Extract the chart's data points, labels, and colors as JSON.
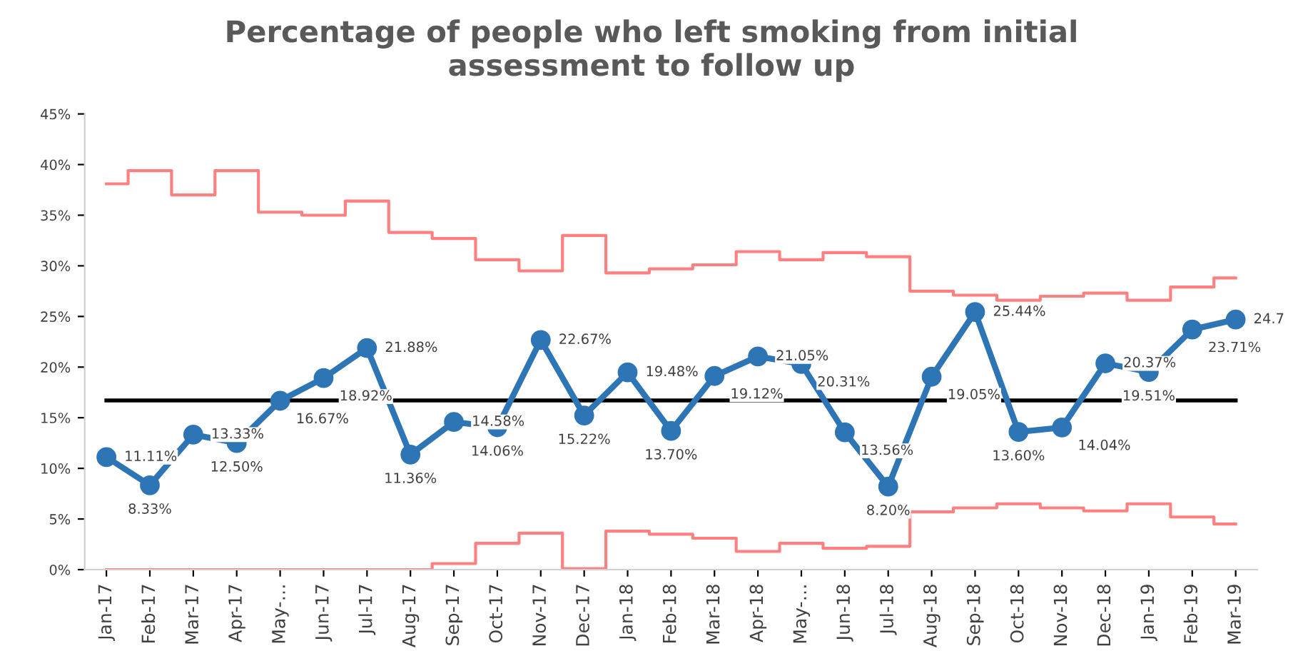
{
  "chart_data": {
    "type": "line",
    "title": "Percentage of people who left smoking from initial\nassessment to follow up",
    "categories": [
      "Jan-17",
      "Feb-17",
      "Mar-17",
      "Apr-17",
      "May-…",
      "Jun-17",
      "Jul-17",
      "Aug-17",
      "Sep-17",
      "Oct-17",
      "Nov-17",
      "Dec-17",
      "Jan-18",
      "Feb-18",
      "Mar-18",
      "Apr-18",
      "May-…",
      "Jun-18",
      "Jul-18",
      "Aug-18",
      "Sep-18",
      "Oct-18",
      "Nov-18",
      "Dec-18",
      "Jan-19",
      "Feb-19",
      "Mar-19"
    ],
    "series": [
      {
        "type": "step",
        "color": "#ff8080",
        "marker": "none",
        "values": [
          38.1,
          39.4,
          37.0,
          39.4,
          35.3,
          35.0,
          36.4,
          33.3,
          32.7,
          30.6,
          29.5,
          33.0,
          29.3,
          29.7,
          30.1,
          31.4,
          30.6,
          31.3,
          30.9,
          27.5,
          27.1,
          26.6,
          27.0,
          27.3,
          26.6,
          27.9,
          28.8
        ]
      },
      {
        "type": "step",
        "color": "#ff8080",
        "marker": "none",
        "values": [
          0,
          0,
          0,
          0,
          0,
          0,
          0,
          0,
          0.6,
          2.6,
          3.6,
          0.1,
          3.8,
          3.5,
          3.1,
          1.8,
          2.6,
          2.1,
          2.3,
          5.7,
          6.1,
          6.5,
          6.1,
          5.8,
          6.5,
          5.2,
          4.5
        ]
      },
      {
        "color": "#2e75b6",
        "marker": "circle",
        "values": [
          11.11,
          8.33,
          13.33,
          12.5,
          16.67,
          18.92,
          21.88,
          11.36,
          14.58,
          14.06,
          22.67,
          15.22,
          19.48,
          13.7,
          19.12,
          21.05,
          20.31,
          13.56,
          8.2,
          19.05,
          25.44,
          13.6,
          14.04,
          20.37,
          19.51,
          23.71,
          24.7
        ],
        "value_labels": [
          "11.11%",
          "8.33%",
          "13.33%",
          "12.50%",
          "16.67%",
          "18.92%",
          "21.88%",
          "11.36%",
          "14.58%",
          "14.06%",
          "22.67%",
          "15.22%",
          "19.48%",
          "13.70%",
          "19.12%",
          "21.05%",
          "20.31%",
          "13.56%",
          "8.20%",
          "19.05%",
          "25.44%",
          "13.60%",
          "14.04%",
          "20.37%",
          "19.51%",
          "23.71%",
          "24.7"
        ]
      }
    ],
    "ref_lines": [
      {
        "axis": "y",
        "value": 16.7,
        "color": "#000000"
      }
    ],
    "ylim": [
      0,
      45
    ],
    "yticks": [
      {
        "value": 0,
        "label": "0%"
      },
      {
        "value": 5,
        "label": "5%"
      },
      {
        "value": 10,
        "label": "10%"
      },
      {
        "value": 15,
        "label": "15%"
      },
      {
        "value": 20,
        "label": "20%"
      },
      {
        "value": 25,
        "label": "25%"
      },
      {
        "value": 30,
        "label": "30%"
      },
      {
        "value": 35,
        "label": "35%"
      },
      {
        "value": 40,
        "label": "40%"
      },
      {
        "value": 45,
        "label": "45%"
      }
    ],
    "grid": false,
    "legend": false
  }
}
